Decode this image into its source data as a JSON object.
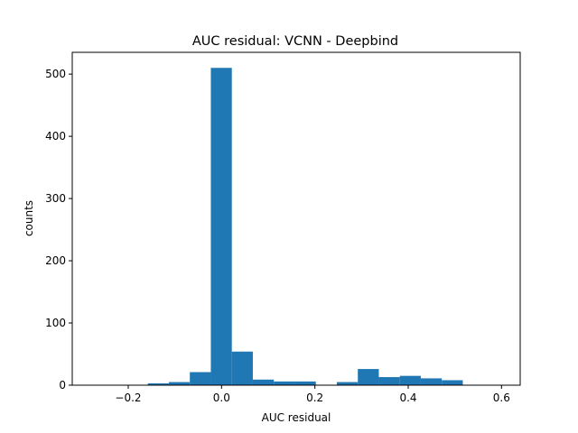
{
  "chart_data": {
    "type": "bar",
    "title": "AUC residual: VCNN - Deepbind",
    "xlabel": "AUC residual",
    "ylabel": "counts",
    "xlim": [
      -0.32,
      0.64
    ],
    "ylim": [
      0,
      535
    ],
    "xticks": [
      -0.2,
      0.0,
      0.2,
      0.4,
      0.6
    ],
    "xtick_labels": [
      "−0.2",
      "0.0",
      "0.2",
      "0.4",
      "0.6"
    ],
    "yticks": [
      0,
      100,
      200,
      300,
      400,
      500
    ],
    "ytick_labels": [
      "0",
      "100",
      "200",
      "300",
      "400",
      "500"
    ],
    "grid": false,
    "bar_color": "#1f77b4",
    "bins": [
      {
        "x0": -0.158,
        "x1": -0.113,
        "value": 3
      },
      {
        "x0": -0.113,
        "x1": -0.068,
        "value": 5
      },
      {
        "x0": -0.068,
        "x1": -0.023,
        "value": 21
      },
      {
        "x0": -0.023,
        "x1": 0.022,
        "value": 510
      },
      {
        "x0": 0.022,
        "x1": 0.067,
        "value": 54
      },
      {
        "x0": 0.067,
        "x1": 0.112,
        "value": 9
      },
      {
        "x0": 0.112,
        "x1": 0.157,
        "value": 6
      },
      {
        "x0": 0.157,
        "x1": 0.202,
        "value": 6
      },
      {
        "x0": 0.202,
        "x1": 0.247,
        "value": 0
      },
      {
        "x0": 0.247,
        "x1": 0.292,
        "value": 5
      },
      {
        "x0": 0.292,
        "x1": 0.337,
        "value": 26
      },
      {
        "x0": 0.337,
        "x1": 0.382,
        "value": 13
      },
      {
        "x0": 0.382,
        "x1": 0.427,
        "value": 15
      },
      {
        "x0": 0.427,
        "x1": 0.472,
        "value": 11
      },
      {
        "x0": 0.472,
        "x1": 0.517,
        "value": 8
      }
    ]
  }
}
